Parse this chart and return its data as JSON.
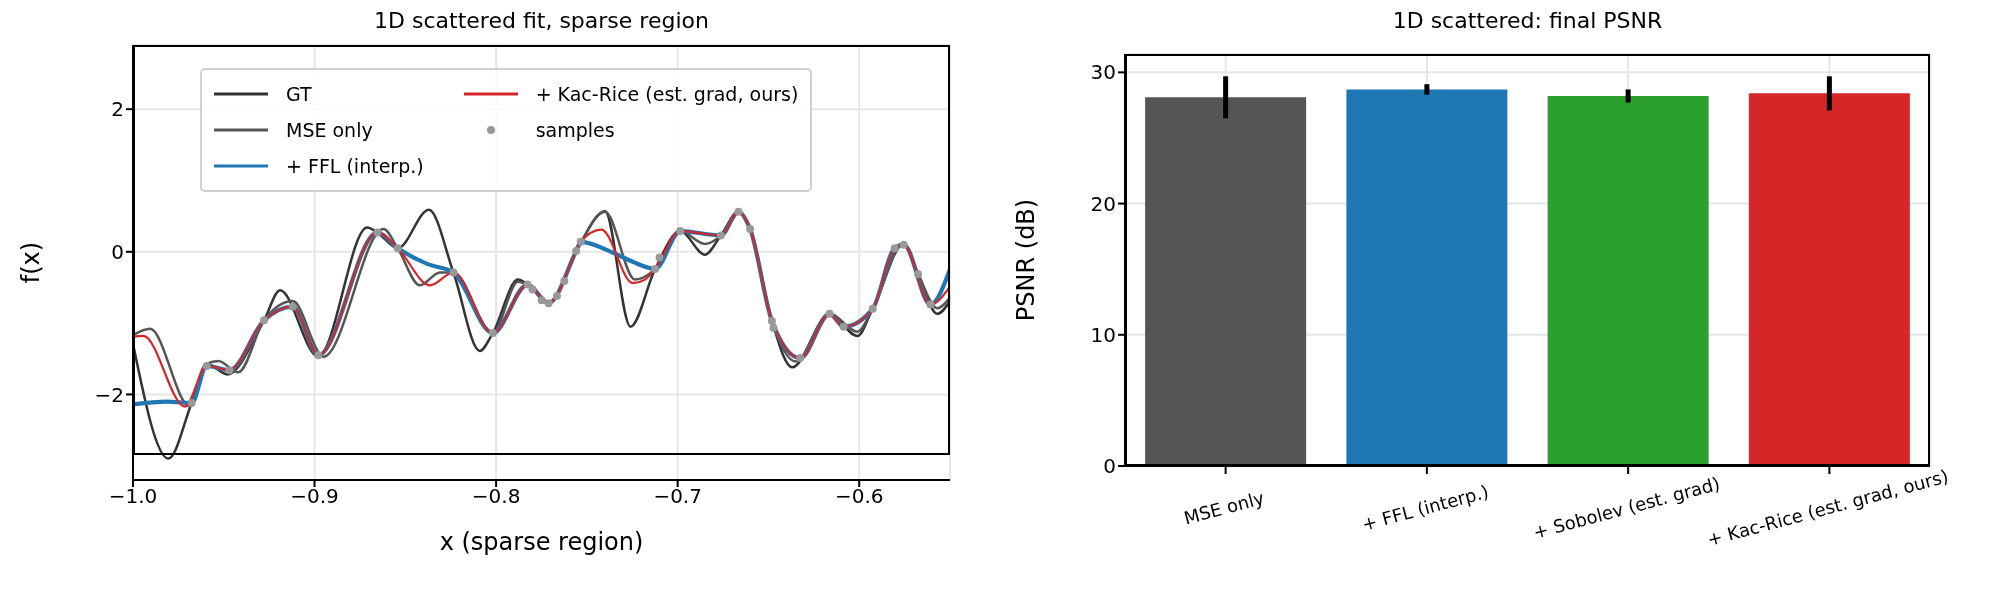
{
  "chart_data": [
    {
      "type": "line",
      "title": "1D scattered fit, sparse region",
      "xlabel": "x (sparse region)",
      "ylabel": "f(x)",
      "xlim": [
        -1.0,
        -0.55
      ],
      "ylim": [
        -3.2,
        2.9
      ],
      "xticks": [
        {
          "value": -1.0,
          "label": "−1.0"
        },
        {
          "value": -0.9,
          "label": "−0.9"
        },
        {
          "value": -0.8,
          "label": "−0.8"
        },
        {
          "value": -0.7,
          "label": "−0.7"
        },
        {
          "value": -0.6,
          "label": "−0.6"
        }
      ],
      "yticks": [
        {
          "value": -2,
          "label": "−2"
        },
        0,
        2
      ],
      "grid": true,
      "legend": "top",
      "series": [
        {
          "name": "GT",
          "color": "#333333",
          "x": [
            -1.0,
            -0.9805,
            -0.9677,
            -0.9594,
            -0.948,
            -0.9278,
            -0.919,
            -0.898,
            -0.871,
            -0.8654,
            -0.8542,
            -0.837,
            -0.8235,
            -0.809,
            -0.8018,
            -0.788,
            -0.7813,
            -0.7711,
            -0.7559,
            -0.74,
            -0.726,
            -0.7124,
            -0.6986,
            -0.685,
            -0.6762,
            -0.6665,
            -0.6601,
            -0.6481,
            -0.637,
            -0.6163,
            -0.601,
            -0.5926,
            -0.5755,
            -0.5676,
            -0.557,
            -0.55
          ],
          "values": [
            -1.29,
            -2.9,
            -2.12,
            -1.57,
            -1.72,
            -0.96,
            -0.54,
            -1.47,
            0.34,
            0.27,
            0.05,
            0.59,
            -0.29,
            -1.39,
            -1.14,
            -0.39,
            -0.49,
            -0.72,
            0.01,
            0.57,
            -1.05,
            -0.24,
            0.29,
            -0.04,
            0.23,
            0.56,
            0.32,
            -0.97,
            -1.62,
            -0.87,
            -1.18,
            -0.8,
            0.11,
            -0.31,
            -0.87,
            -0.69
          ]
        },
        {
          "name": "MSE only",
          "color": "#555555",
          "x": [
            -1.0,
            -0.9906,
            -0.9686,
            -0.9594,
            -0.953,
            -0.942,
            -0.9278,
            -0.912,
            -0.8951,
            -0.862,
            -0.8542,
            -0.842,
            -0.831,
            -0.8235,
            -0.8018,
            -0.788,
            -0.7813,
            -0.7711,
            -0.7559,
            -0.74,
            -0.7235,
            -0.7124,
            -0.6986,
            -0.685,
            -0.6762,
            -0.6665,
            -0.6601,
            -0.6481,
            -0.635,
            -0.6163,
            -0.601,
            -0.5926,
            -0.5755,
            -0.5676,
            -0.557,
            -0.55
          ],
          "values": [
            -1.17,
            -1.08,
            -2.17,
            -1.57,
            -1.53,
            -1.69,
            -0.96,
            -0.69,
            -1.47,
            0.32,
            0.05,
            -0.47,
            -0.29,
            -0.29,
            -1.14,
            -0.42,
            -0.49,
            -0.72,
            0.01,
            0.56,
            -0.39,
            -0.24,
            0.29,
            0.11,
            0.23,
            0.56,
            0.32,
            -0.97,
            -1.54,
            -0.87,
            -1.12,
            -0.8,
            0.11,
            -0.31,
            -0.79,
            -0.64
          ]
        },
        {
          "name": "+ FFL (interp.)",
          "color": "#1f77b4",
          "x": [
            -1.0,
            -0.9815,
            -0.9677,
            -0.9594,
            -0.9469,
            -0.9278,
            -0.912,
            -0.8979,
            -0.8654,
            -0.8542,
            -0.838,
            -0.8235,
            -0.8018,
            -0.7827,
            -0.7711,
            -0.7559,
            -0.7534,
            -0.735,
            -0.7247,
            -0.7124,
            -0.6986,
            -0.6762,
            -0.6665,
            -0.6601,
            -0.6481,
            -0.6325,
            -0.6163,
            -0.6086,
            -0.5926,
            -0.5805,
            -0.5755,
            -0.5608,
            -0.55
          ],
          "values": [
            -2.14,
            -2.1,
            -2.12,
            -1.6,
            -1.66,
            -0.96,
            -0.77,
            -1.45,
            0.27,
            0.05,
            -0.17,
            -0.29,
            -1.14,
            -0.46,
            -0.72,
            0.01,
            0.14,
            -0.02,
            -0.14,
            -0.24,
            0.29,
            0.23,
            0.56,
            0.32,
            -0.97,
            -1.49,
            -0.87,
            -1.05,
            -0.8,
            0.05,
            0.1,
            -0.74,
            -0.24
          ]
        },
        {
          "name": "+ Kac-Rice (est. grad, ours)",
          "color": "#d62728",
          "x": [
            -1.0,
            -0.9943,
            -0.9713,
            -0.9594,
            -0.9469,
            -0.9278,
            -0.912,
            -0.8979,
            -0.8654,
            -0.8542,
            -0.8364,
            -0.8235,
            -0.8018,
            -0.7827,
            -0.7711,
            -0.7559,
            -0.7534,
            -0.742,
            -0.7247,
            -0.718,
            -0.7124,
            -0.6986,
            -0.6762,
            -0.6665,
            -0.6601,
            -0.6481,
            -0.6325,
            -0.6163,
            -0.6086,
            -0.5926,
            -0.5805,
            -0.5755,
            -0.5608,
            -0.55
          ],
          "values": [
            -1.19,
            -1.18,
            -2.17,
            -1.6,
            -1.66,
            -0.96,
            -0.77,
            -1.45,
            0.27,
            0.05,
            -0.47,
            -0.29,
            -1.14,
            -0.46,
            -0.72,
            0.01,
            0.14,
            0.31,
            -0.44,
            -0.39,
            -0.24,
            0.29,
            0.23,
            0.56,
            0.32,
            -0.97,
            -1.49,
            -0.87,
            -1.05,
            -0.8,
            0.05,
            0.1,
            -0.74,
            -0.49
          ]
        },
        {
          "name": "samples",
          "type": "scatter",
          "color": "#999999",
          "x": [
            -0.9677,
            -0.9594,
            -0.9469,
            -0.9278,
            -0.912,
            -0.8979,
            -0.8654,
            -0.8542,
            -0.8235,
            -0.8018,
            -0.7827,
            -0.78,
            -0.7749,
            -0.7711,
            -0.7665,
            -0.7624,
            -0.7559,
            -0.7534,
            -0.7124,
            -0.71,
            -0.6986,
            -0.6762,
            -0.6665,
            -0.6601,
            -0.6481,
            -0.6472,
            -0.6325,
            -0.6163,
            -0.6086,
            -0.5926,
            -0.5805,
            -0.5755,
            -0.5676,
            -0.5608
          ],
          "values": [
            -2.12,
            -1.6,
            -1.66,
            -0.96,
            -0.77,
            -1.45,
            0.27,
            0.05,
            -0.29,
            -1.14,
            -0.46,
            -0.53,
            -0.68,
            -0.72,
            -0.62,
            -0.41,
            0.01,
            0.14,
            -0.24,
            -0.08,
            0.29,
            0.23,
            0.56,
            0.32,
            -0.97,
            -1.07,
            -1.49,
            -0.87,
            -1.05,
            -0.8,
            0.05,
            0.1,
            -0.31,
            -0.74
          ]
        }
      ]
    },
    {
      "type": "bar",
      "title": "1D scattered: final PSNR",
      "ylabel": "PSNR (dB)",
      "categories": [
        "MSE only",
        "+ FFL (interp.)",
        "+ Sobolev (est. grad)",
        "+ Kac-Rice (est. grad, ours)"
      ],
      "values": [
        28.1,
        28.7,
        28.2,
        28.4
      ],
      "errors": [
        1.6,
        0.4,
        0.5,
        1.3
      ],
      "colors": [
        "#555555",
        "#1f77b4",
        "#2ca02c",
        "#d62728"
      ],
      "ylim": [
        0,
        31.4
      ],
      "yticks": [
        0,
        10,
        20,
        30
      ],
      "grid": true
    }
  ]
}
